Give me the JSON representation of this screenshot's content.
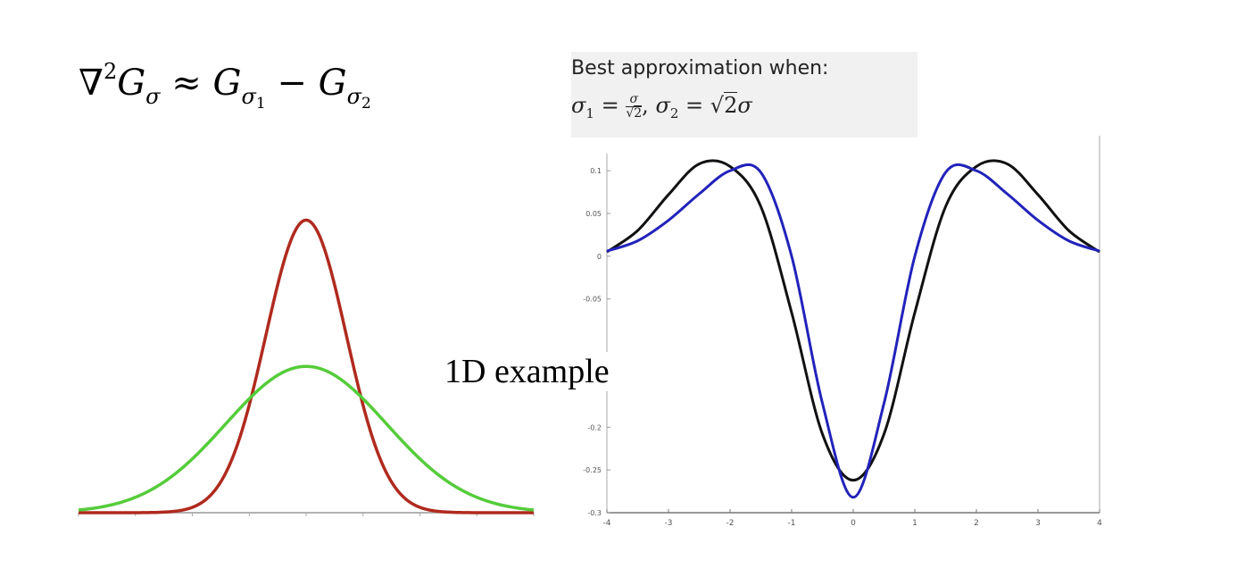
{
  "formula": {
    "nabla": "∇",
    "exp": "2",
    "G": "G",
    "sigma": "σ",
    "approx": "≈",
    "sub1": "1",
    "sub2": "2",
    "minus": "−"
  },
  "best": {
    "line1": "Best approximation when:",
    "s1": "σ",
    "eq": "=",
    "frac_num": "σ",
    "frac_den": "2",
    "sqrt": "√",
    "sub1": "1",
    "sub2": "2",
    "comma": ","
  },
  "example_label": "1D example",
  "chart_data": [
    {
      "type": "line",
      "title": "",
      "xlabel": "",
      "ylabel": "",
      "xlim": [
        -4,
        4
      ],
      "ylim": [
        0,
        1
      ],
      "x_ticks": [
        -4,
        -3,
        -2,
        -1,
        0,
        1,
        2,
        3,
        4
      ],
      "series": [
        {
          "color": "#b02a1e",
          "mean": 0,
          "sigma": 0.707,
          "peak": 0.9
        },
        {
          "color": "#55cc3a",
          "mean": 0,
          "sigma": 1.414,
          "peak": 0.45
        }
      ]
    },
    {
      "type": "line",
      "title": "",
      "xlabel": "",
      "ylabel": "",
      "xlim": [
        -4,
        4
      ],
      "ylim": [
        -0.3,
        0.12
      ],
      "grid": false,
      "x_ticks": [
        "-4",
        "-3",
        "-2",
        "-1",
        "0",
        "1",
        "2",
        "3",
        "4"
      ],
      "y_ticks": [
        "0.1",
        "0.05",
        "0",
        "-0.05",
        "-0.2",
        "-0.25",
        "-0.3"
      ],
      "series": [
        {
          "color": "#111111",
          "x": [
            -4,
            -3.5,
            -3,
            -2.5,
            -2,
            -1.5,
            -1,
            -0.5,
            0,
            0.5,
            1,
            1.5,
            2,
            2.5,
            3,
            3.5,
            4
          ],
          "y": [
            0.005,
            0.03,
            0.072,
            0.108,
            0.105,
            0.058,
            -0.066,
            -0.208,
            -0.262,
            -0.208,
            -0.066,
            0.058,
            0.105,
            0.108,
            0.072,
            0.03,
            0.005
          ]
        },
        {
          "color": "#2222bb",
          "x": [
            -4,
            -3.5,
            -3,
            -2.5,
            -2,
            -1.5,
            -1,
            -0.5,
            0,
            0.5,
            1,
            1.5,
            2,
            2.5,
            3,
            3.5,
            4
          ],
          "y": [
            0.006,
            0.018,
            0.042,
            0.073,
            0.1,
            0.098,
            0.0,
            -0.172,
            -0.282,
            -0.172,
            0.0,
            0.098,
            0.1,
            0.073,
            0.042,
            0.018,
            0.006
          ]
        }
      ]
    }
  ]
}
